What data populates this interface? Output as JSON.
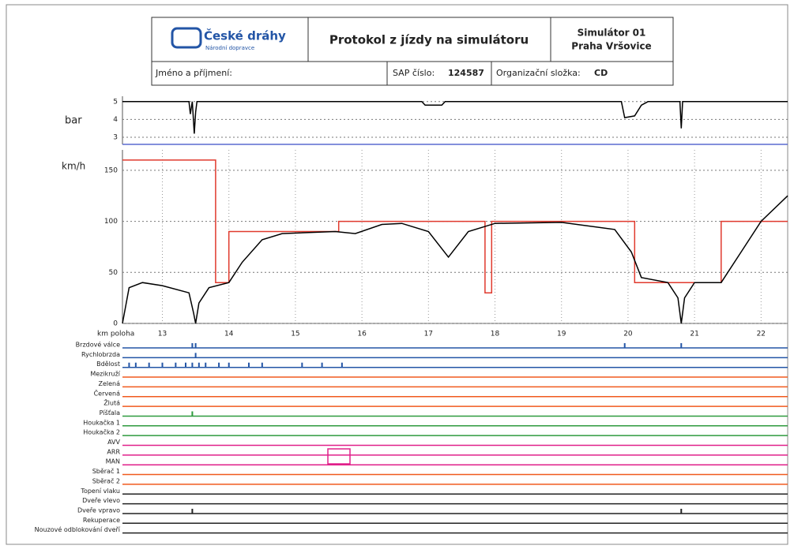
{
  "header": {
    "logo": "České dráhy",
    "logo_sub": "Národní dopravce",
    "title": "Protokol z jízdy na simulátoru",
    "simulator": "Simulátor 01",
    "location": "Praha Vršovice",
    "name_label": "Jméno a příjmení:",
    "sap_label": "SAP číslo:",
    "sap_value": "124587",
    "org_label": "Organizační složka:",
    "org_value": "CD"
  },
  "chart_data": [
    {
      "type": "line",
      "y_label": "bar",
      "xlim": [
        12.4,
        22.4
      ],
      "ylim": [
        2.6,
        5.3
      ],
      "yticks": [
        3,
        4,
        5
      ],
      "grid": true,
      "series": [
        {
          "color": "#000000",
          "x": [
            12.4,
            13.4,
            13.42,
            13.45,
            13.48,
            13.5,
            13.52,
            16.9,
            16.95,
            17.2,
            17.25,
            19.9,
            19.95,
            20.1,
            20.2,
            20.3,
            20.78,
            20.8,
            20.82,
            22.4
          ],
          "values": [
            5,
            5,
            4.3,
            5,
            3.2,
            4.4,
            5,
            5,
            4.8,
            4.8,
            5,
            5,
            4.1,
            4.2,
            4.8,
            5,
            5,
            3.5,
            5,
            5
          ]
        }
      ]
    },
    {
      "type": "line",
      "y_label": "km/h",
      "x_label": "km poloha",
      "xlim": [
        12.4,
        22.4
      ],
      "ylim": [
        0,
        170
      ],
      "xticks": [
        13,
        14,
        15,
        16,
        17,
        18,
        19,
        20,
        21,
        22
      ],
      "yticks": [
        0,
        50,
        100,
        150
      ],
      "grid": true,
      "series": [
        {
          "color": "#e03a2e",
          "x": [
            12.4,
            13.8,
            13.8,
            14.0,
            14.0,
            15.65,
            15.65,
            17.85,
            17.85,
            17.95,
            17.95,
            20.1,
            20.1,
            21.4,
            21.4,
            22.4
          ],
          "values": [
            160,
            160,
            40,
            40,
            90,
            90,
            100,
            100,
            30,
            30,
            100,
            100,
            40,
            40,
            100,
            100
          ]
        },
        {
          "color": "#000000",
          "x": [
            12.4,
            12.5,
            12.7,
            13.0,
            13.4,
            13.47,
            13.5,
            13.55,
            13.7,
            14.0,
            14.2,
            14.5,
            14.8,
            15.6,
            15.9,
            16.3,
            16.6,
            17.0,
            17.3,
            17.6,
            18.0,
            19.0,
            19.8,
            20.05,
            20.2,
            20.6,
            20.75,
            20.8,
            20.85,
            21.0,
            21.4,
            21.7,
            22.0,
            22.4
          ],
          "values": [
            0,
            35,
            40,
            37,
            30,
            10,
            0,
            20,
            35,
            40,
            60,
            82,
            88,
            90,
            88,
            97,
            98,
            90,
            65,
            90,
            98,
            99,
            92,
            70,
            45,
            40,
            25,
            0,
            25,
            40,
            40,
            70,
            100,
            125
          ]
        }
      ]
    }
  ],
  "signals": [
    {
      "label": "Brzdové válce",
      "color": "#2355a6",
      "events": [
        13.45,
        13.5,
        19.95,
        20.8
      ]
    },
    {
      "label": "Rychlobrzda",
      "color": "#2355a6",
      "events": [
        13.5
      ]
    },
    {
      "label": "Bdělost",
      "color": "#2355a6",
      "events": [
        12.5,
        12.6,
        12.8,
        13.0,
        13.2,
        13.35,
        13.45,
        13.55,
        13.65,
        13.85,
        14.0,
        14.3,
        14.5,
        15.1,
        15.4,
        15.7
      ]
    },
    {
      "label": "Mezikruží",
      "color": "#f05a1e",
      "events": []
    },
    {
      "label": "Zelená",
      "color": "#f05a1e",
      "events": []
    },
    {
      "label": "Červená",
      "color": "#f05a1e",
      "events": []
    },
    {
      "label": "Žlutá",
      "color": "#f05a1e",
      "events": []
    },
    {
      "label": "Píšťala",
      "color": "#2e9a3e",
      "events": [
        13.45
      ]
    },
    {
      "label": "Houkačka 1",
      "color": "#2e9a3e",
      "events": []
    },
    {
      "label": "Houkačka 2",
      "color": "#2e9a3e",
      "events": []
    },
    {
      "label": "AVV",
      "color": "#e0208a",
      "events": []
    },
    {
      "label": "ARR",
      "color": "#e0208a",
      "events": []
    },
    {
      "label": "MAN",
      "color": "#e0208a",
      "events": []
    },
    {
      "label": "Sběrač 1",
      "color": "#f05a1e",
      "events": []
    },
    {
      "label": "Sběrač 2",
      "color": "#f05a1e",
      "events": []
    },
    {
      "label": "Topení vlaku",
      "color": "#222222",
      "events": []
    },
    {
      "label": "Dveře vlevo",
      "color": "#222222",
      "events": []
    },
    {
      "label": "Dveře vpravo",
      "color": "#222222",
      "events": [
        13.45,
        20.8
      ]
    },
    {
      "label": "Rekuperace",
      "color": "#222222",
      "events": []
    },
    {
      "label": "Nouzové odblokování dveří",
      "color": "#222222",
      "events": []
    }
  ]
}
